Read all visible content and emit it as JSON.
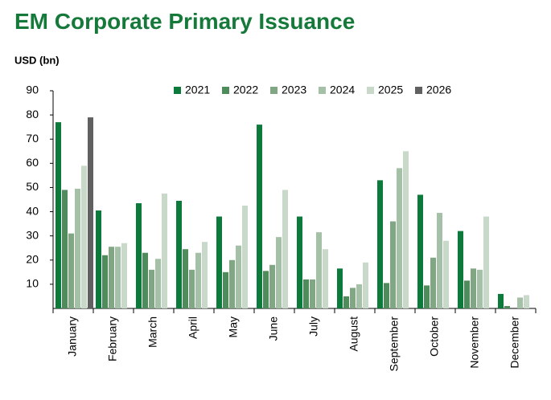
{
  "chart_data": {
    "type": "bar",
    "title": "EM Corporate Primary Issuance",
    "y_label": "USD (bn)",
    "categories": [
      "January",
      "February",
      "March",
      "April",
      "May",
      "June",
      "July",
      "August",
      "September",
      "October",
      "November",
      "December"
    ],
    "series": [
      {
        "name": "2021",
        "color": "#0b7a3b",
        "values": [
          77,
          40.5,
          43.5,
          44.5,
          38,
          76,
          38,
          16.5,
          53,
          47,
          32,
          6
        ]
      },
      {
        "name": "2022",
        "color": "#4f8c5b",
        "values": [
          49,
          22,
          23,
          24.5,
          15,
          15.5,
          12,
          5,
          10.5,
          9.5,
          11.5,
          1
        ]
      },
      {
        "name": "2023",
        "color": "#80a684",
        "values": [
          31,
          25.5,
          16,
          16,
          20,
          18,
          12,
          8.5,
          36,
          21,
          16.5,
          null
        ]
      },
      {
        "name": "2024",
        "color": "#a4c0a6",
        "values": [
          49.5,
          25.5,
          20.5,
          23,
          26,
          29.5,
          31.5,
          10,
          58,
          39.5,
          16,
          4.5
        ]
      },
      {
        "name": "2025",
        "color": "#c9d9c9",
        "values": [
          59,
          27,
          47.5,
          27.5,
          42.5,
          49,
          24.5,
          19,
          65,
          28,
          38,
          5.5
        ]
      },
      {
        "name": "2026",
        "color": "#606060",
        "values": [
          79,
          null,
          null,
          null,
          null,
          null,
          null,
          null,
          null,
          null,
          null,
          null
        ]
      }
    ],
    "ylim": [
      0,
      90
    ],
    "yticks": [
      10,
      20,
      30,
      40,
      50,
      60,
      70,
      80,
      90
    ],
    "grid": false
  }
}
